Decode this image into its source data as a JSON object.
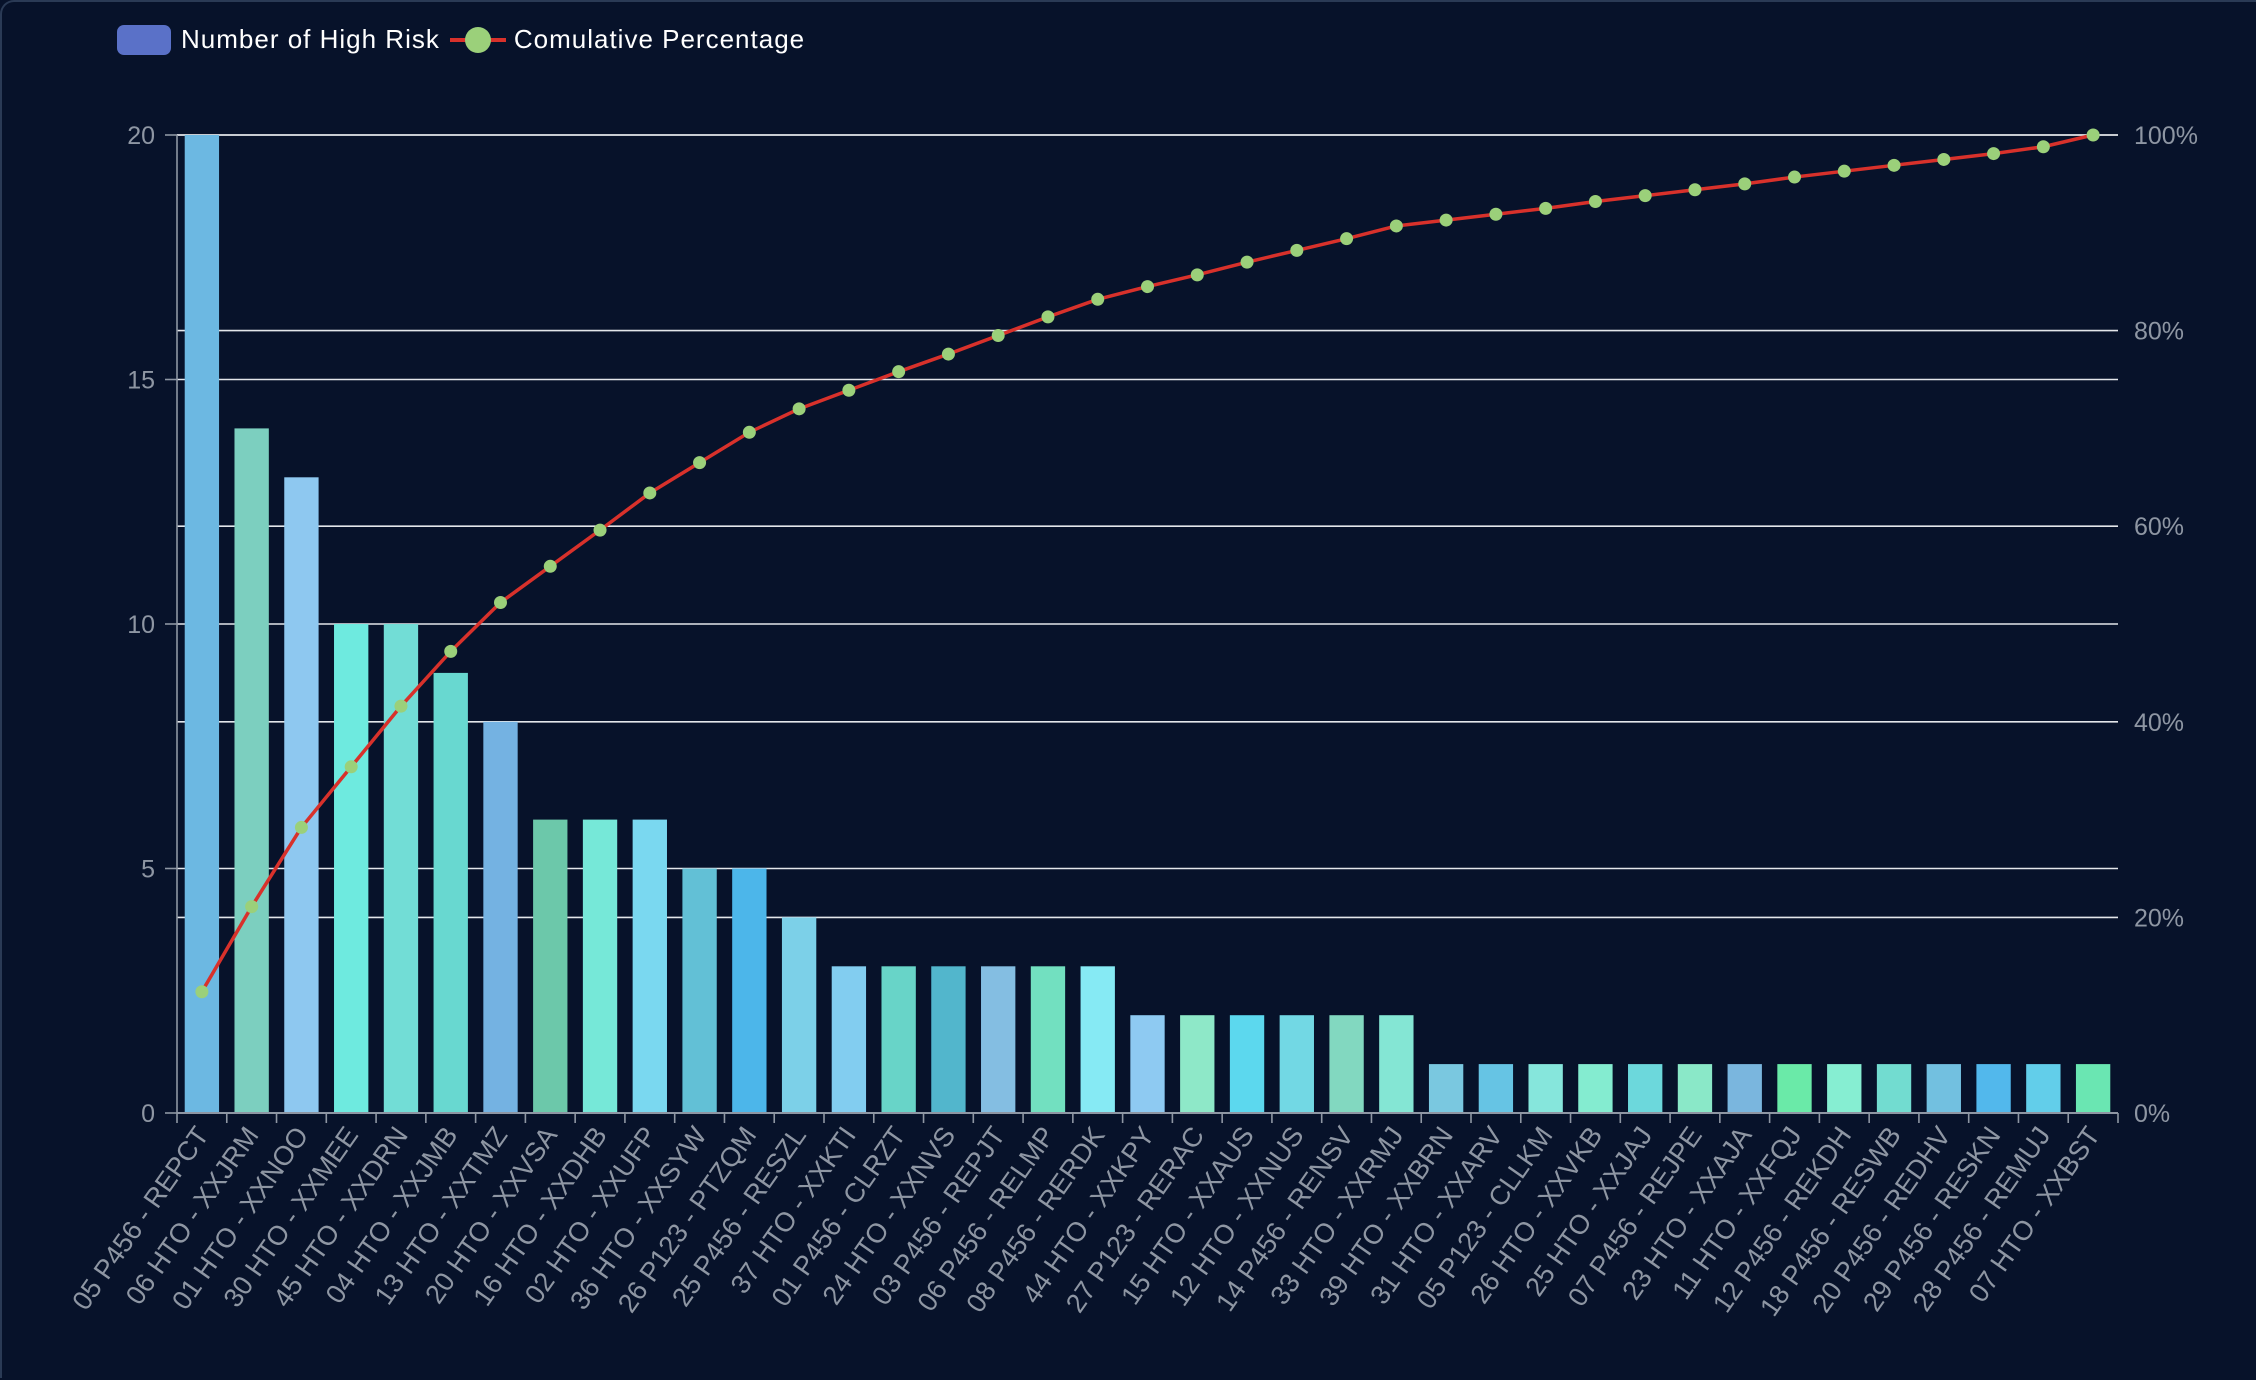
{
  "legend": {
    "bar_label": "Number of High Risk",
    "line_label": "Comulative Percentage"
  },
  "colors": {
    "background": "#07122a",
    "legend_bar": "#5a71c8",
    "line": "#d8312b",
    "marker": "#9bd07a",
    "grid": "#e3e6ea",
    "tick_text": "#8e96a3"
  },
  "chart_data": {
    "type": "bar",
    "categories": [
      "05 P456 - REPCT",
      "06 HTO - XXJRM",
      "01 HTO - XXNOO",
      "30 HTO - XXMEE",
      "45 HTO - XXDRN",
      "04 HTO - XXJMB",
      "13 HTO - XXTMZ",
      "20 HTO - XXVSA",
      "16 HTO - XXDHB",
      "02 HTO - XXUFP",
      "36 HTO - XXSYW",
      "26 P123 - PTZQM",
      "25 P456 - RESZL",
      "37 HTO - XXKTI",
      "01 P456 - CLRZT",
      "24 HTO - XXNVS",
      "03 P456 - REPJT",
      "06 P456 - RELMP",
      "08 P456 - RERDK",
      "44 HTO - XXKPY",
      "27 P123 - RERAC",
      "15 HTO - XXAUS",
      "12 HTO - XXNUS",
      "14 P456 - RENSV",
      "33 HTO - XXRMJ",
      "39 HTO - XXBRN",
      "31 HTO - XXARV",
      "05 P123 - CLLKM",
      "26 HTO - XXVKB",
      "25 HTO - XXJAJ",
      "07 P456 - REJPE",
      "23 HTO - XXAJA",
      "11 HTO - XXFQJ",
      "12 P456 - REKDH",
      "18 P456 - RESWB",
      "20 P456 - REDHV",
      "29 P456 - RESKN",
      "28 P456 - REMUJ",
      "07 HTO - XXBST"
    ],
    "series": [
      {
        "name": "Number of High Risk",
        "type": "bar",
        "axis": "left",
        "values": [
          20,
          14,
          13,
          10,
          10,
          9,
          8,
          6,
          6,
          6,
          5,
          5,
          4,
          3,
          3,
          3,
          3,
          3,
          3,
          2,
          2,
          2,
          2,
          2,
          2,
          1,
          1,
          1,
          1,
          1,
          1,
          1,
          1,
          1,
          1,
          1,
          1,
          1,
          1
        ],
        "colors": [
          "#6cb8e2",
          "#7ccfbf",
          "#8ec8f0",
          "#6eeadf",
          "#72ddd6",
          "#68d8d0",
          "#74b2e2",
          "#6cc8aa",
          "#76e8d8",
          "#7ad8f0",
          "#62c0d6",
          "#4cb6ea",
          "#7cd0e8",
          "#82cdf0",
          "#68d4c8",
          "#52b6cc",
          "#84bee2",
          "#72e0c0",
          "#86eaf4",
          "#8ecaf2",
          "#8ee8c8",
          "#5cd8ee",
          "#72d8e4",
          "#82d8c0",
          "#84e6d4",
          "#7ac8e0",
          "#66c4e4",
          "#86e6dc",
          "#84ecd0",
          "#6cd8dc",
          "#8ae8c8",
          "#7ab6de",
          "#6aeaa8",
          "#86eed2",
          "#72dcd0",
          "#72c0e0",
          "#52b8ec",
          "#62ceea",
          "#6ae6b2"
        ]
      },
      {
        "name": "Comulative Percentage",
        "type": "line",
        "axis": "right",
        "values": [
          12.4,
          21.1,
          29.2,
          35.4,
          41.6,
          47.2,
          52.2,
          55.9,
          59.6,
          63.4,
          66.5,
          69.6,
          72.0,
          73.9,
          75.8,
          77.6,
          79.5,
          81.4,
          83.2,
          84.5,
          85.7,
          87.0,
          88.2,
          89.4,
          90.7,
          91.3,
          91.9,
          92.5,
          93.2,
          93.8,
          94.4,
          95.0,
          95.7,
          96.3,
          96.9,
          97.5,
          98.1,
          98.8,
          100.0
        ]
      }
    ],
    "y_left": {
      "min": 0,
      "max": 20,
      "ticks": [
        "0",
        "5",
        "10",
        "15",
        "20"
      ]
    },
    "y_right": {
      "min": 0,
      "max": 100,
      "ticks": [
        "0%",
        "20%",
        "40%",
        "60%",
        "80%",
        "100%"
      ]
    },
    "grid": true,
    "legend_position": "top-left"
  }
}
